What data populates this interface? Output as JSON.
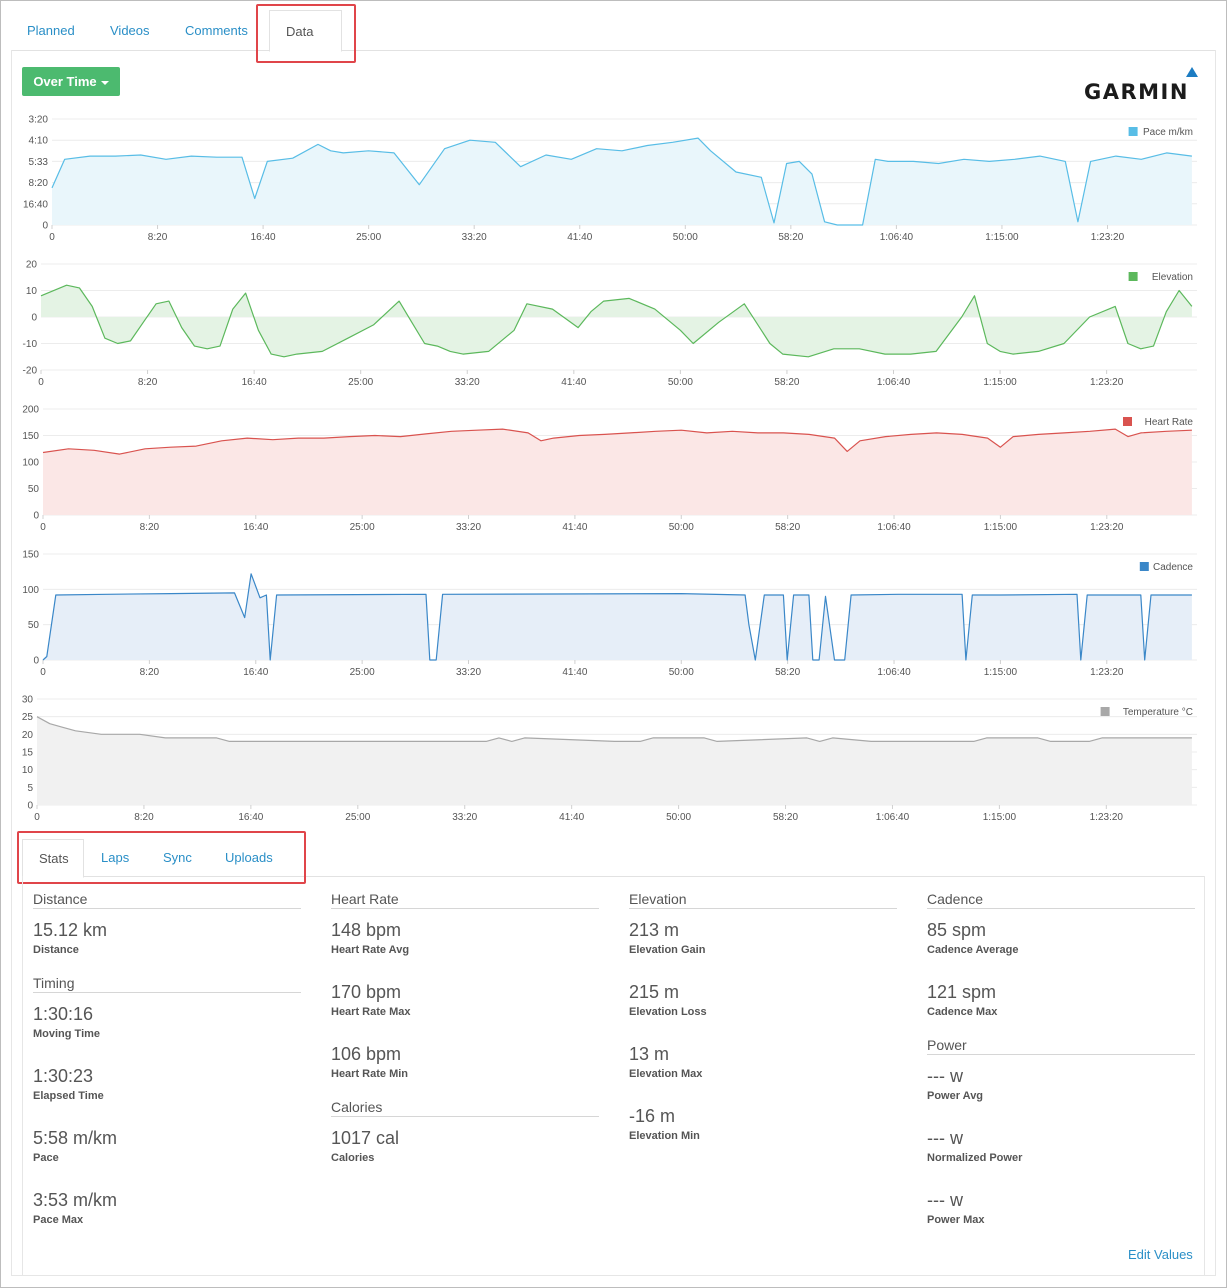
{
  "top_tabs": [
    {
      "label": "Planned"
    },
    {
      "label": "Videos"
    },
    {
      "label": "Comments"
    },
    {
      "label": "Data"
    }
  ],
  "toolbar": {
    "over_time_label": "Over Time"
  },
  "brand": {
    "logo_text": "GARMIN",
    "logo_color": "#1c7cc2"
  },
  "x_ticks": [
    "0",
    "8:20",
    "16:40",
    "25:00",
    "33:20",
    "41:40",
    "50:00",
    "58:20",
    "1:06:40",
    "1:15:00",
    "1:23:20"
  ],
  "chart_data": [
    {
      "type": "area",
      "legend": "Pace m/km",
      "color": "#58bde6",
      "fill": "#e9f6fb",
      "y_ticks": [
        "3:20",
        "4:10",
        "5:33",
        "8:20",
        "16:40",
        "0"
      ],
      "x_units": "minutes",
      "x_range": [
        0,
        90.4
      ],
      "x": [
        0,
        1,
        3,
        5,
        7,
        9,
        11,
        13,
        15,
        16,
        17,
        19,
        21,
        22,
        23,
        25,
        27,
        29,
        31,
        33,
        35,
        37,
        39,
        41,
        43,
        45,
        47,
        49,
        51,
        52,
        54,
        56,
        57,
        58,
        59,
        60,
        61,
        62,
        63,
        64,
        65,
        66,
        68,
        70,
        72,
        74,
        76,
        78,
        80,
        81,
        82,
        84,
        86,
        88,
        90
      ],
      "values": [
        0.35,
        0.62,
        0.65,
        0.65,
        0.66,
        0.62,
        0.65,
        0.64,
        0.64,
        0.25,
        0.6,
        0.63,
        0.76,
        0.7,
        0.68,
        0.7,
        0.68,
        0.38,
        0.72,
        0.8,
        0.78,
        0.55,
        0.66,
        0.62,
        0.72,
        0.7,
        0.75,
        0.78,
        0.82,
        0.7,
        0.5,
        0.45,
        0.02,
        0.58,
        0.6,
        0.48,
        0.03,
        0.0,
        0.0,
        0.0,
        0.62,
        0.6,
        0.6,
        0.58,
        0.62,
        0.6,
        0.62,
        0.65,
        0.6,
        0.03,
        0.6,
        0.65,
        0.62,
        0.68,
        0.65
      ]
    },
    {
      "type": "area",
      "legend": "Elevation",
      "color": "#5cb85c",
      "fill": "#e4f3e4",
      "y_ticks": [
        "20",
        "10",
        "0",
        "-10",
        "-20"
      ],
      "ylim": [
        -20,
        20
      ],
      "x": [
        0,
        2,
        3,
        4,
        5,
        6,
        7,
        8,
        9,
        10,
        11,
        12,
        13,
        14,
        15,
        16,
        17,
        18,
        19,
        20,
        22,
        24,
        26,
        28,
        29,
        30,
        31,
        32,
        33,
        35,
        37,
        38,
        40,
        42,
        43,
        44,
        46,
        48,
        50,
        51,
        53,
        55,
        57,
        58,
        60,
        62,
        64,
        66,
        68,
        70,
        72,
        73,
        74,
        75,
        76,
        78,
        80,
        82,
        84,
        85,
        86,
        87,
        88,
        89,
        90
      ],
      "values": [
        8,
        12,
        11,
        4,
        -8,
        -10,
        -9,
        -2,
        5,
        6,
        -4,
        -11,
        -12,
        -11,
        3,
        9,
        -5,
        -14,
        -15,
        -14,
        -13,
        -8,
        -3,
        6,
        -2,
        -10,
        -11,
        -13,
        -14,
        -13,
        -5,
        5,
        3,
        -4,
        2,
        6,
        7,
        3,
        -5,
        -10,
        -2,
        5,
        -10,
        -14,
        -15,
        -12,
        -12,
        -14,
        -14,
        -13,
        0,
        8,
        -10,
        -13,
        -14,
        -13,
        -10,
        0,
        4,
        -10,
        -12,
        -11,
        2,
        10,
        4
      ]
    },
    {
      "type": "area",
      "legend": "Heart Rate",
      "color": "#d9534f",
      "fill": "#fbe7e6",
      "y_ticks": [
        "200",
        "150",
        "100",
        "50",
        "0"
      ],
      "ylim": [
        0,
        200
      ],
      "x": [
        0,
        2,
        4,
        6,
        8,
        10,
        12,
        14,
        16,
        18,
        20,
        22,
        24,
        26,
        28,
        30,
        32,
        34,
        36,
        38,
        39,
        40,
        42,
        44,
        46,
        48,
        50,
        52,
        54,
        56,
        58,
        60,
        62,
        63,
        64,
        66,
        68,
        70,
        72,
        74,
        75,
        76,
        78,
        80,
        82,
        84,
        85,
        86,
        88,
        90
      ],
      "values": [
        118,
        125,
        122,
        115,
        125,
        128,
        130,
        140,
        145,
        142,
        145,
        145,
        148,
        150,
        148,
        153,
        158,
        160,
        162,
        155,
        140,
        145,
        150,
        152,
        155,
        158,
        160,
        155,
        158,
        155,
        155,
        152,
        145,
        120,
        140,
        148,
        152,
        155,
        152,
        145,
        128,
        148,
        152,
        155,
        158,
        162,
        148,
        155,
        158,
        160
      ]
    },
    {
      "type": "area",
      "legend": "Cadence",
      "color": "#3a87c8",
      "fill": "#e6eef8",
      "y_ticks": [
        "150",
        "100",
        "50",
        "0"
      ],
      "ylim": [
        0,
        150
      ],
      "x": [
        0,
        0.3,
        1,
        5,
        10,
        15,
        15.8,
        16.3,
        17,
        17.5,
        17.8,
        18.3,
        30,
        30.3,
        30.8,
        31.3,
        50,
        55,
        55.3,
        55.8,
        56.5,
        58,
        58.3,
        58.8,
        60,
        60.3,
        60.8,
        61.3,
        62,
        62.3,
        62.8,
        63.3,
        67,
        72,
        72.3,
        72.8,
        75,
        81,
        81.3,
        81.8,
        86,
        86.3,
        86.8,
        90
      ],
      "values": [
        0,
        5,
        92,
        93,
        94,
        95,
        60,
        122,
        88,
        92,
        0,
        92,
        93,
        0,
        0,
        93,
        94,
        92,
        50,
        0,
        92,
        92,
        0,
        92,
        92,
        0,
        0,
        90,
        0,
        0,
        0,
        92,
        93,
        93,
        0,
        92,
        92,
        93,
        0,
        92,
        92,
        0,
        92,
        92
      ]
    },
    {
      "type": "area",
      "legend": "Temperature °C",
      "color": "#a8a8a8",
      "fill": "#f1f1f1",
      "y_ticks": [
        "30",
        "25",
        "20",
        "15",
        "10",
        "5",
        "0"
      ],
      "ylim": [
        0,
        30
      ],
      "x": [
        0,
        1,
        2,
        3,
        5,
        8,
        10,
        14,
        15,
        20,
        30,
        35,
        36,
        37,
        38,
        45,
        47,
        48,
        52,
        53,
        60,
        61,
        62,
        65,
        73,
        74,
        78,
        79,
        82,
        83,
        90
      ],
      "values": [
        25,
        23,
        22,
        21,
        20,
        20,
        19,
        19,
        18,
        18,
        18,
        18,
        19,
        18,
        19,
        18,
        18,
        19,
        19,
        18,
        19,
        18,
        19,
        18,
        18,
        19,
        19,
        18,
        18,
        19,
        19
      ]
    }
  ],
  "bottom_tabs": [
    {
      "label": "Stats"
    },
    {
      "label": "Laps"
    },
    {
      "label": "Sync"
    },
    {
      "label": "Uploads"
    }
  ],
  "stats": {
    "distance": {
      "title": "Distance",
      "value": "15.12 km",
      "label": "Distance"
    },
    "timing": {
      "title": "Timing",
      "items": [
        {
          "value": "1:30:16",
          "label": "Moving Time"
        },
        {
          "value": "1:30:23",
          "label": "Elapsed Time"
        },
        {
          "value": "5:58 m/km",
          "label": "Pace"
        },
        {
          "value": "3:53 m/km",
          "label": "Pace Max"
        }
      ]
    },
    "heart_rate": {
      "title": "Heart Rate",
      "items": [
        {
          "value": "148 bpm",
          "label": "Heart Rate Avg"
        },
        {
          "value": "170 bpm",
          "label": "Heart Rate Max"
        },
        {
          "value": "106 bpm",
          "label": "Heart Rate Min"
        }
      ]
    },
    "calories": {
      "title": "Calories",
      "value": "1017 cal",
      "label": "Calories"
    },
    "elevation": {
      "title": "Elevation",
      "items": [
        {
          "value": "213 m",
          "label": "Elevation Gain"
        },
        {
          "value": "215 m",
          "label": "Elevation Loss"
        },
        {
          "value": "13 m",
          "label": "Elevation Max"
        },
        {
          "value": "-16 m",
          "label": "Elevation Min"
        }
      ]
    },
    "cadence": {
      "title": "Cadence",
      "items": [
        {
          "value": "85 spm",
          "label": "Cadence Average"
        },
        {
          "value": "121 spm",
          "label": "Cadence Max"
        }
      ]
    },
    "power": {
      "title": "Power",
      "items": [
        {
          "value": "--- w",
          "label": "Power Avg"
        },
        {
          "value": "--- w",
          "label": "Normalized Power"
        },
        {
          "value": "--- w",
          "label": "Power Max"
        }
      ]
    }
  },
  "footer": {
    "edit_label": "Edit Values"
  }
}
